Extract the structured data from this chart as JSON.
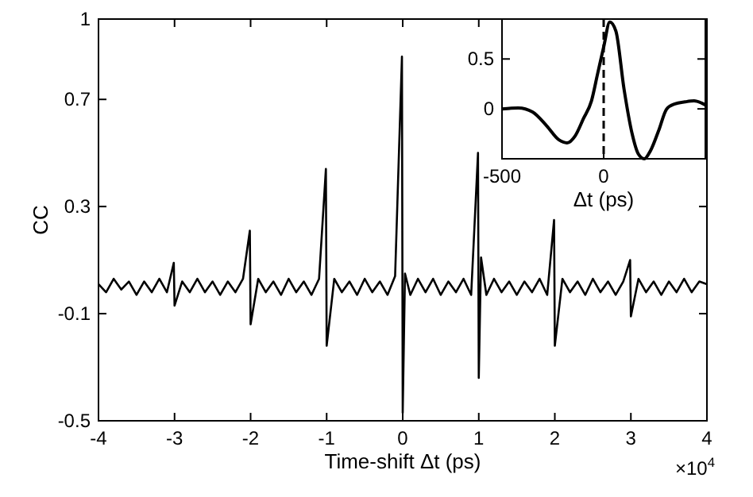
{
  "chart_data": [
    {
      "type": "line",
      "xlabel": "Time-shift Δt (ps)",
      "ylabel": "CC",
      "xlim": [
        -4,
        4
      ],
      "ylim": [
        -0.5,
        1
      ],
      "xticks": [
        -4,
        -3,
        -2,
        -1,
        0,
        1,
        2,
        3,
        4
      ],
      "yticks": [
        -0.5,
        -0.1,
        0.3,
        0.7,
        1
      ],
      "annotations": [
        "×10$^{4}$"
      ],
      "grid": false,
      "marker": "none",
      "line_style": "solid",
      "series": [
        {
          "color": "#000000",
          "x": [
            -4,
            -3.9,
            -3.8,
            -3.7,
            -3.6,
            -3.5,
            -3.4,
            -3.3,
            -3.2,
            -3.1,
            -3.01,
            -3,
            -2.9,
            -2.8,
            -2.7,
            -2.6,
            -2.5,
            -2.4,
            -2.3,
            -2.2,
            -2.1,
            -2.01,
            -2,
            -1.9,
            -1.8,
            -1.7,
            -1.6,
            -1.5,
            -1.4,
            -1.3,
            -1.2,
            -1.1,
            -1.01,
            -1,
            -0.9,
            -0.8,
            -0.7,
            -0.6,
            -0.5,
            -0.4,
            -0.3,
            -0.2,
            -0.1,
            -0.01,
            0,
            0.03,
            0.1,
            0.2,
            0.3,
            0.4,
            0.5,
            0.6,
            0.7,
            0.8,
            0.9,
            0.99,
            1,
            1.03,
            1.1,
            1.2,
            1.3,
            1.4,
            1.5,
            1.6,
            1.7,
            1.8,
            1.9,
            1.99,
            2,
            2.1,
            2.2,
            2.3,
            2.4,
            2.5,
            2.6,
            2.7,
            2.8,
            2.9,
            2.99,
            3,
            3.1,
            3.2,
            3.3,
            3.4,
            3.5,
            3.6,
            3.7,
            3.8,
            3.9,
            4
          ],
          "values": [
            0.01,
            -0.02,
            0.03,
            -0.01,
            0.02,
            -0.03,
            0.02,
            -0.02,
            0.03,
            -0.02,
            0.09,
            -0.07,
            0.02,
            -0.02,
            0.03,
            -0.02,
            0.02,
            -0.03,
            0.02,
            -0.02,
            0.03,
            0.21,
            -0.14,
            0.03,
            -0.02,
            0.02,
            -0.03,
            0.03,
            -0.02,
            0.02,
            -0.03,
            0.03,
            0.44,
            -0.22,
            0.03,
            -0.02,
            0.02,
            -0.03,
            0.03,
            -0.02,
            0.02,
            -0.03,
            0.04,
            0.86,
            -0.47,
            0.05,
            -0.03,
            0.03,
            -0.02,
            0.03,
            -0.03,
            0.02,
            -0.02,
            0.03,
            -0.03,
            0.5,
            -0.34,
            0.11,
            -0.03,
            0.03,
            -0.02,
            0.02,
            -0.03,
            0.02,
            -0.02,
            0.03,
            -0.03,
            0.25,
            -0.22,
            0.03,
            -0.02,
            0.02,
            -0.03,
            0.03,
            -0.02,
            0.02,
            -0.03,
            0.02,
            0.1,
            -0.11,
            0.03,
            -0.02,
            0.02,
            -0.03,
            0.02,
            -0.02,
            0.03,
            -0.02,
            0.02,
            0.01
          ]
        }
      ]
    },
    {
      "type": "line",
      "xlabel": "Δt (ps)",
      "xlim": [
        -500,
        500
      ],
      "ylim": [
        -0.5,
        0.9
      ],
      "xticks": [
        -500,
        0
      ],
      "yticks": [
        0,
        0.5
      ],
      "grid": false,
      "marker": "none",
      "line_style": "solid",
      "ref_lines": [
        {
          "axis": "x",
          "value": 0,
          "line_style": "dashed",
          "color": "#000000"
        }
      ],
      "series": [
        {
          "color": "#000000",
          "x": [
            -500,
            -420,
            -350,
            -280,
            -220,
            -180,
            -140,
            -100,
            -60,
            -30,
            0,
            30,
            60,
            100,
            140,
            170,
            200,
            230,
            270,
            310,
            350,
            400,
            445,
            480,
            500
          ],
          "values": [
            0,
            0.01,
            -0.03,
            -0.17,
            -0.31,
            -0.34,
            -0.27,
            -0.1,
            0.08,
            0.35,
            0.62,
            0.87,
            0.78,
            0.2,
            -0.25,
            -0.45,
            -0.5,
            -0.42,
            -0.22,
            0,
            0.05,
            0.07,
            0.08,
            0.06,
            0.04
          ]
        }
      ]
    }
  ]
}
